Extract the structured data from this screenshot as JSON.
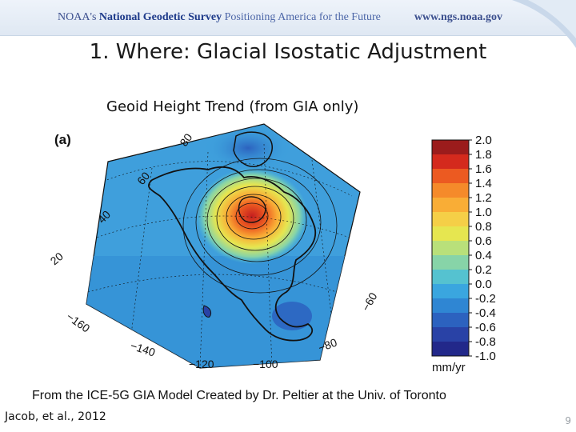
{
  "header": {
    "org_prefix": "NOAA's ",
    "org_name": "National Geodetic Survey",
    "tagline": " Positioning America for the Future",
    "url": "www.ngs.noaa.gov"
  },
  "slide": {
    "title": "1. Where: Glacial Isostatic Adjustment",
    "subtitle": "Geoid Height Trend (from GIA only)",
    "caption": "From the ICE-5G GIA Model Created by Dr. Peltier at the Univ. of Toronto",
    "credit": "Jacob, et al., 2012",
    "page_number": "9"
  },
  "map": {
    "panel_label": "(a)",
    "lat_labels": [
      "80",
      "60",
      "40",
      "20"
    ],
    "lon_labels": [
      "−160",
      "−140",
      "−120",
      "−100",
      "−80",
      "−60"
    ],
    "colorbar": {
      "unit": "mm/yr",
      "min": -1.0,
      "max": 2.0,
      "ticks": [
        "2.0",
        "1.8",
        "1.6",
        "1.4",
        "1.2",
        "1.0",
        "0.8",
        "0.6",
        "0.4",
        "0.2",
        "0.0",
        "-0.2",
        "-0.4",
        "-0.6",
        "-0.8",
        "-1.0"
      ],
      "colors": [
        "#9b1c1c",
        "#d42a1d",
        "#ec5a21",
        "#f58a2a",
        "#f9ad36",
        "#f5cf47",
        "#e6e650",
        "#b9e07a",
        "#87d4a8",
        "#55c2d0",
        "#3aa6df",
        "#2f86d3",
        "#2c62bf",
        "#2942a6",
        "#22288a"
      ]
    }
  }
}
